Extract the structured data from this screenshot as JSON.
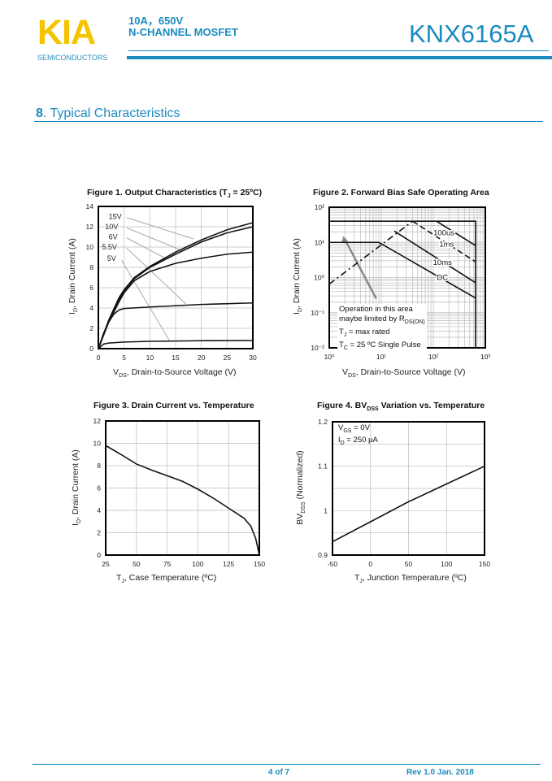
{
  "header": {
    "logo": "KIA",
    "logo_sub": "SEMICONDUCTORS",
    "spec_line1": "10A，650V",
    "spec_line2": "N-CHANNEL MOSFET",
    "part_number": "KNX6165A",
    "colors": {
      "brand_blue": "#1a8ac0",
      "logo_yellow": "#f5c400"
    }
  },
  "section": {
    "number": "8",
    "title": ". Typical Characteristics"
  },
  "figures": [
    {
      "title_pre": "Figure 1. Output Characteristics (T",
      "title_sub": "J",
      "title_post": " = 25ºC)",
      "xlabel_pre": "V",
      "xlabel_sub": "DS",
      "xlabel_post": ", Drain-to-Source Voltage (V)",
      "ylabel_pre": "I",
      "ylabel_sub": "D",
      "ylabel_post": ", Drain Current (A)"
    },
    {
      "title_pre": "Figure 2. Forward Bias Safe Operating Area",
      "title_sub": "",
      "title_post": "",
      "xlabel_pre": "V",
      "xlabel_sub": "DS",
      "xlabel_post": ", Drain-to-Source Voltage (V)",
      "ylabel_pre": "I",
      "ylabel_sub": "D",
      "ylabel_post": ", Drain Current (A)"
    },
    {
      "title_pre": "Figure 3. Drain Current vs. Temperature",
      "title_sub": "",
      "title_post": "",
      "xlabel_pre": "T",
      "xlabel_sub": "J",
      "xlabel_post": ", Case Temperature (ºC)",
      "ylabel_pre": "I",
      "ylabel_sub": "D",
      "ylabel_post": ", Drain Current (A)"
    },
    {
      "title_pre": "Figure 4. BV",
      "title_sub": "DSS",
      "title_post": " Variation vs. Temperature",
      "xlabel_pre": "T",
      "xlabel_sub": "J",
      "xlabel_post": ", Junction Temperature (ºC)",
      "ylabel_pre": "BV",
      "ylabel_sub": "DSS",
      "ylabel_post": " (Normalized)"
    }
  ],
  "chart_data": [
    {
      "type": "line",
      "xlim": [
        0,
        30
      ],
      "ylim": [
        0,
        14
      ],
      "grid": true,
      "x_ticks": [
        0,
        5,
        10,
        15,
        20,
        25,
        30
      ],
      "x_tick_labels": [
        "0",
        "5",
        "10",
        "15",
        "20",
        "25",
        "30"
      ],
      "y_ticks": [
        0,
        2,
        4,
        6,
        8,
        10,
        12,
        14
      ],
      "y_tick_labels": [
        "0",
        "2",
        "4",
        "6",
        "8",
        "10",
        "12",
        "14"
      ],
      "series": [
        {
          "name": "15V",
          "x": [
            0,
            2,
            4,
            5,
            7,
            10,
            15,
            20,
            25,
            30
          ],
          "y": [
            0,
            2.8,
            5.0,
            5.8,
            7.0,
            8.1,
            9.5,
            10.7,
            11.7,
            12.4
          ]
        },
        {
          "name": "10V",
          "x": [
            0,
            2,
            4,
            5,
            7,
            10,
            15,
            20,
            25,
            30
          ],
          "y": [
            0,
            2.7,
            4.8,
            5.7,
            6.9,
            8.0,
            9.3,
            10.5,
            11.4,
            12.0
          ]
        },
        {
          "name": "6V",
          "x": [
            0,
            2,
            4,
            5,
            7,
            10,
            15,
            20,
            25,
            30
          ],
          "y": [
            0,
            2.6,
            4.6,
            5.5,
            6.7,
            7.6,
            8.4,
            8.9,
            9.3,
            9.5
          ]
        },
        {
          "name": "5.5V",
          "x": [
            0,
            1,
            2,
            3,
            4,
            5,
            10,
            20,
            30
          ],
          "y": [
            0,
            1.5,
            2.6,
            3.4,
            3.8,
            3.95,
            4.1,
            4.35,
            4.5
          ]
        },
        {
          "name": "5V",
          "x": [
            0,
            1,
            2,
            5,
            10,
            20,
            30
          ],
          "y": [
            0,
            0.45,
            0.55,
            0.65,
            0.72,
            0.78,
            0.8
          ]
        }
      ]
    },
    {
      "type": "line",
      "x_scale": "log",
      "y_scale": "log",
      "xlim": [
        1,
        1000
      ],
      "ylim": [
        0.01,
        100
      ],
      "grid": true,
      "x_ticks": [
        1,
        10,
        100,
        1000
      ],
      "x_tick_labels": [
        "10⁰",
        "10¹",
        "10²",
        "10³"
      ],
      "y_ticks": [
        0.01,
        0.1,
        1,
        10,
        100
      ],
      "y_tick_labels": [
        "10⁻²",
        "10⁻¹",
        "10⁰",
        "10¹",
        "10²"
      ],
      "series": [
        {
          "name": "100us",
          "x": [
            115,
            650
          ],
          "y": [
            40,
            8.1
          ]
        },
        {
          "name": "1ms",
          "x": [
            40,
            650
          ],
          "y": [
            40,
            2.8
          ],
          "style": "dashed"
        },
        {
          "name": "10ms",
          "x": [
            17.8,
            650
          ],
          "y": [
            21,
            0.71
          ]
        },
        {
          "name": "DC",
          "x": [
            1,
            9,
            650
          ],
          "y": [
            10,
            10,
            0.26
          ]
        },
        {
          "x": [
            1,
            40
          ],
          "y": [
            0.65,
            40
          ],
          "style": "dash-dot"
        },
        {
          "x": [
            1,
            650,
            650
          ],
          "y": [
            40,
            40,
            0.01
          ]
        }
      ],
      "annotation": {
        "line1": "Operation in this area",
        "line2_pre": "maybe limited by R",
        "line2_sub": "DS(ON)",
        "line3_pre": "T",
        "line3_sub": "J",
        "line3_post": " = max rated",
        "line4_pre": "T",
        "line4_sub": "C",
        "line4_post": " = 25 ºC Single Pulse"
      }
    },
    {
      "type": "line",
      "xlim": [
        25,
        150
      ],
      "ylim": [
        0,
        12
      ],
      "grid": true,
      "x_ticks": [
        25,
        50,
        75,
        100,
        125,
        150
      ],
      "x_tick_labels": [
        "25",
        "50",
        "75",
        "100",
        "125",
        "150"
      ],
      "y_ticks": [
        0,
        2,
        4,
        6,
        8,
        10,
        12
      ],
      "y_tick_labels": [
        "0",
        "2",
        "4",
        "6",
        "8",
        "10",
        "12"
      ],
      "series": [
        {
          "x": [
            25,
            37.5,
            50,
            62.5,
            75,
            87.5,
            100,
            112.5,
            125,
            137.5,
            143,
            147,
            150
          ],
          "y": [
            9.8,
            9.0,
            8.15,
            7.6,
            7.1,
            6.6,
            5.9,
            5.1,
            4.2,
            3.3,
            2.6,
            1.5,
            0
          ]
        }
      ]
    },
    {
      "type": "line",
      "xlim": [
        -50,
        150
      ],
      "ylim": [
        0.9,
        1.2
      ],
      "grid": true,
      "x_ticks": [
        -50,
        0,
        50,
        100,
        150
      ],
      "x_tick_labels": [
        "-50",
        "0",
        "50",
        "100",
        "150"
      ],
      "y_ticks": [
        0.9,
        1.0,
        1.1,
        1.2
      ],
      "y_tick_labels": [
        "0.9",
        "1",
        "1.1",
        "1.2"
      ],
      "y_minor_grid": [
        0.95,
        1.05,
        1.15
      ],
      "series": [
        {
          "x": [
            -50,
            0,
            50,
            100,
            150
          ],
          "y": [
            0.93,
            0.975,
            1.02,
            1.06,
            1.1
          ]
        }
      ],
      "annotation": {
        "line1_pre": "V",
        "line1_sub": "GS",
        "line1_post": " = 0V",
        "line2_pre": "I",
        "line2_sub": "D",
        "line2_post": " = 250 µA"
      }
    }
  ],
  "footer": {
    "page": "4 of 7",
    "revision": "Rev 1.0 Jan. 2018"
  }
}
